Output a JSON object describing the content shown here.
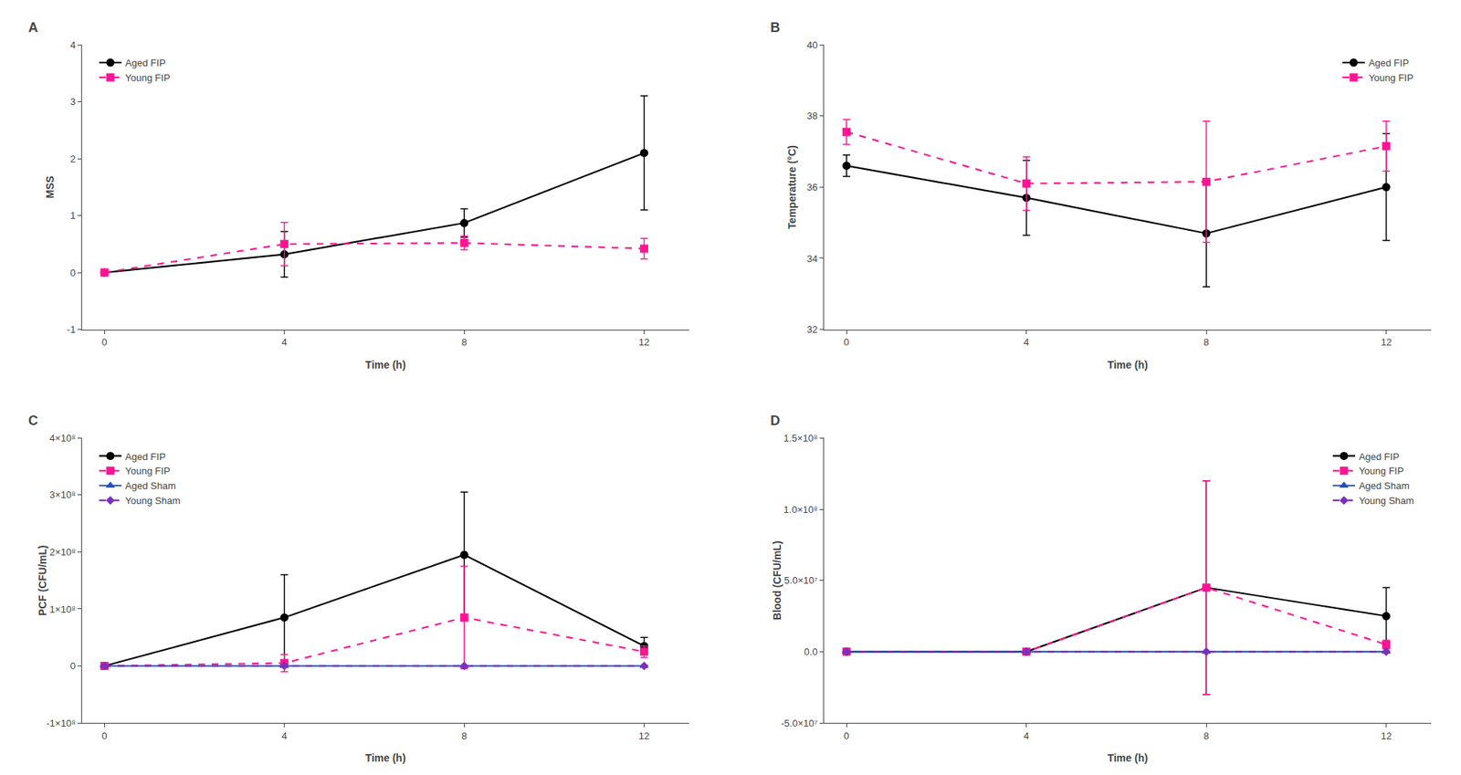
{
  "chart_data": [
    {
      "type": "line",
      "title": "A",
      "xlabel": "Time (h)",
      "ylabel": "MSS",
      "x": [
        0,
        4,
        8,
        12
      ],
      "xlim": [
        -0.5,
        13
      ],
      "xticks": [
        0,
        4,
        8,
        12
      ],
      "ylim": [
        -1,
        4
      ],
      "yticks": [
        -1,
        0,
        1,
        2,
        3,
        4
      ],
      "grid": false,
      "legend": "upper left",
      "series": [
        {
          "name": "Aged FIP",
          "color": "#000000",
          "marker": "circle",
          "line_style": "solid",
          "values": [
            0.0,
            0.32,
            0.87,
            2.1
          ],
          "error": [
            0.0,
            0.4,
            0.25,
            1.0
          ]
        },
        {
          "name": "Young FIP",
          "color": "#FF1493",
          "marker": "square",
          "line_style": "dash",
          "values": [
            0.0,
            0.5,
            0.52,
            0.42
          ],
          "error": [
            0.0,
            0.38,
            0.12,
            0.18
          ]
        }
      ]
    },
    {
      "type": "line",
      "title": "B",
      "xlabel": "Time (h)",
      "ylabel": "Temperature (°C)",
      "x": [
        0,
        4,
        8,
        12
      ],
      "xlim": [
        -0.5,
        13
      ],
      "xticks": [
        0,
        4,
        8,
        12
      ],
      "ylim": [
        32,
        40
      ],
      "yticks": [
        32,
        34,
        36,
        38,
        40
      ],
      "grid": false,
      "legend": "upper right",
      "series": [
        {
          "name": "Aged FIP",
          "color": "#000000",
          "marker": "circle",
          "line_style": "solid",
          "values": [
            36.6,
            35.7,
            34.7,
            36.0
          ],
          "error": [
            0.3,
            1.05,
            1.5,
            1.5
          ]
        },
        {
          "name": "Young FIP",
          "color": "#FF1493",
          "marker": "square",
          "line_style": "dash",
          "values": [
            37.55,
            36.1,
            36.15,
            37.15
          ],
          "error": [
            0.35,
            0.75,
            1.7,
            0.7
          ]
        }
      ]
    },
    {
      "type": "line",
      "title": "C",
      "xlabel": "Time (h)",
      "ylabel": "PCF (CFU/mL)",
      "x": [
        0,
        4,
        8,
        12
      ],
      "xlim": [
        -0.5,
        13
      ],
      "xticks": [
        0,
        4,
        8,
        12
      ],
      "ylim": [
        -100000000.0,
        400000000.0
      ],
      "yticks": [
        {
          "value": -100000000.0,
          "label": "-1×10⁸"
        },
        0,
        {
          "value": 100000000.0,
          "label": "1×10⁸"
        },
        {
          "value": 200000000.0,
          "label": "2×10⁸"
        },
        {
          "value": 300000000.0,
          "label": "3×10⁸"
        },
        {
          "value": 400000000.0,
          "label": "4×10⁸"
        }
      ],
      "grid": false,
      "legend": "upper left",
      "series": [
        {
          "name": "Aged FIP",
          "color": "#000000",
          "marker": "circle",
          "line_style": "solid",
          "values": [
            0.0,
            85000000.0,
            195000000.0,
            35000000.0
          ],
          "error": [
            0.0,
            75000000.0,
            110000000.0,
            15000000.0
          ]
        },
        {
          "name": "Young FIP",
          "color": "#FF1493",
          "marker": "square",
          "line_style": "dash",
          "values": [
            0.0,
            5000000.0,
            85000000.0,
            25000000.0
          ],
          "error": [
            0.0,
            15000000.0,
            90000000.0,
            10000000.0
          ]
        },
        {
          "name": "Aged Sham",
          "color": "#1F4FCC",
          "marker": "triangle-up",
          "line_style": "solid",
          "values": [
            0.0,
            0.0,
            0.0,
            0.0
          ],
          "error": [
            0.0,
            0.0,
            0.0,
            0.0
          ]
        },
        {
          "name": "Young Sham",
          "color": "#7B2FBE",
          "marker": "diamond",
          "line_style": "dash",
          "values": [
            0.0,
            0.0,
            0.0,
            0.0
          ],
          "error": [
            0.0,
            0.0,
            0.0,
            0.0
          ]
        }
      ]
    },
    {
      "type": "line",
      "title": "D",
      "xlabel": "Time (h)",
      "ylabel": "Blood (CFU/mL)",
      "x": [
        0,
        4,
        8,
        12
      ],
      "xlim": [
        -0.5,
        13
      ],
      "xticks": [
        0,
        4,
        8,
        12
      ],
      "ylim": [
        -50000000.0,
        150000000.0
      ],
      "yticks": [
        {
          "value": -50000000.0,
          "label": "-5.0×10⁷"
        },
        {
          "value": 0,
          "label": "0.0"
        },
        {
          "value": 50000000.0,
          "label": "5.0×10⁷"
        },
        {
          "value": 100000000.0,
          "label": "1.0×10⁸"
        },
        {
          "value": 150000000.0,
          "label": "1.5×10⁸"
        }
      ],
      "grid": false,
      "legend": "upper right",
      "series": [
        {
          "name": "Aged FIP",
          "color": "#000000",
          "marker": "circle",
          "line_style": "solid",
          "values": [
            0.0,
            0.0,
            45000000.0,
            25000000.0
          ],
          "error": [
            0.0,
            0.0,
            75000000.0,
            20000000.0
          ]
        },
        {
          "name": "Young FIP",
          "color": "#FF1493",
          "marker": "square",
          "line_style": "dash",
          "values": [
            0.0,
            0.0,
            45000000.0,
            5000000.0
          ],
          "error": [
            0.0,
            0.0,
            75000000.0,
            3000000.0
          ]
        },
        {
          "name": "Aged Sham",
          "color": "#1F4FCC",
          "marker": "triangle-up",
          "line_style": "solid",
          "values": [
            0.0,
            0.0,
            0.0,
            0.0
          ],
          "error": [
            0.0,
            0.0,
            0.0,
            0.0
          ]
        },
        {
          "name": "Young Sham",
          "color": "#7B2FBE",
          "marker": "diamond",
          "line_style": "dash",
          "values": [
            0.0,
            0.0,
            0.0,
            0.0
          ],
          "error": [
            0.0,
            0.0,
            0.0,
            0.0
          ]
        }
      ]
    }
  ]
}
